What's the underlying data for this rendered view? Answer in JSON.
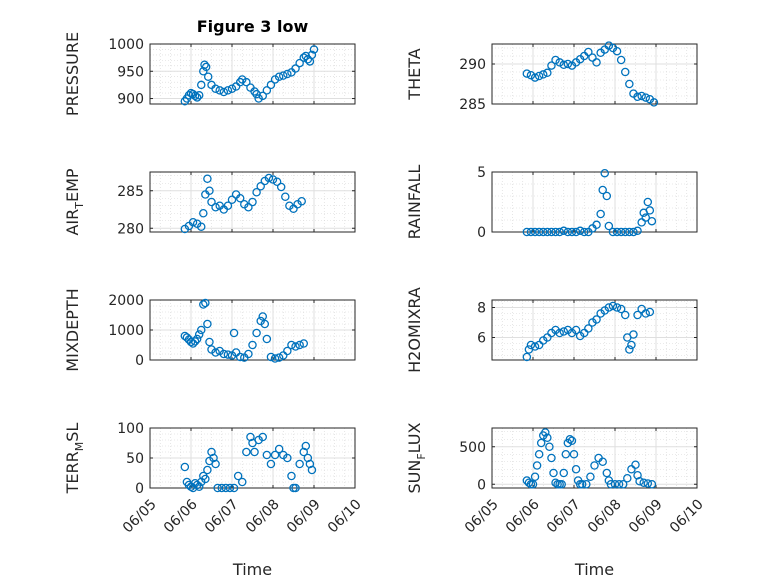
{
  "colors": {
    "marker": "#0072BD",
    "axis": "#262626",
    "grid": "#DFDFDF",
    "minorgrid": "#EFEFEF"
  },
  "chart_data": [
    {
      "type": "scatter",
      "title": "Figure 3 low",
      "ylabel": "PRESSURE",
      "ylabel_parts": null,
      "xlim": [
        0,
        5
      ],
      "ylim": [
        890,
        1000
      ],
      "yticks": [
        900,
        950,
        1000
      ],
      "grid": true,
      "xticklabels_visible": false,
      "xlabel": "",
      "points": [
        [
          0.85,
          895
        ],
        [
          0.9,
          900
        ],
        [
          0.95,
          906
        ],
        [
          1.0,
          910
        ],
        [
          1.05,
          908
        ],
        [
          1.1,
          905
        ],
        [
          1.15,
          902
        ],
        [
          1.2,
          906
        ],
        [
          1.25,
          925
        ],
        [
          1.3,
          950
        ],
        [
          1.33,
          962
        ],
        [
          1.37,
          958
        ],
        [
          1.42,
          940
        ],
        [
          1.5,
          925
        ],
        [
          1.6,
          918
        ],
        [
          1.7,
          915
        ],
        [
          1.8,
          912
        ],
        [
          1.9,
          915
        ],
        [
          2.0,
          918
        ],
        [
          2.1,
          922
        ],
        [
          2.2,
          930
        ],
        [
          2.25,
          935
        ],
        [
          2.35,
          930
        ],
        [
          2.45,
          920
        ],
        [
          2.55,
          913
        ],
        [
          2.6,
          908
        ],
        [
          2.65,
          900
        ],
        [
          2.75,
          905
        ],
        [
          2.85,
          915
        ],
        [
          2.95,
          925
        ],
        [
          3.05,
          935
        ],
        [
          3.15,
          940
        ],
        [
          3.25,
          942
        ],
        [
          3.35,
          945
        ],
        [
          3.45,
          948
        ],
        [
          3.55,
          955
        ],
        [
          3.65,
          965
        ],
        [
          3.75,
          975
        ],
        [
          3.8,
          978
        ],
        [
          3.85,
          972
        ],
        [
          3.9,
          968
        ],
        [
          3.95,
          980
        ],
        [
          4.0,
          990
        ]
      ]
    },
    {
      "type": "scatter",
      "title": "",
      "ylabel": "THETA",
      "ylabel_parts": null,
      "xlim": [
        0,
        5
      ],
      "ylim": [
        285,
        292.5
      ],
      "yticks": [
        285,
        290
      ],
      "grid": true,
      "xticklabels_visible": false,
      "xlabel": "",
      "points": [
        [
          0.85,
          288.8
        ],
        [
          0.95,
          288.6
        ],
        [
          1.05,
          288.3
        ],
        [
          1.15,
          288.5
        ],
        [
          1.25,
          288.7
        ],
        [
          1.35,
          288.9
        ],
        [
          1.45,
          289.8
        ],
        [
          1.55,
          290.5
        ],
        [
          1.65,
          290.2
        ],
        [
          1.75,
          289.9
        ],
        [
          1.85,
          290.0
        ],
        [
          1.95,
          289.8
        ],
        [
          2.05,
          290.2
        ],
        [
          2.15,
          290.6
        ],
        [
          2.25,
          291.0
        ],
        [
          2.35,
          291.5
        ],
        [
          2.45,
          290.8
        ],
        [
          2.55,
          290.2
        ],
        [
          2.65,
          291.4
        ],
        [
          2.75,
          291.8
        ],
        [
          2.85,
          292.3
        ],
        [
          2.95,
          292.0
        ],
        [
          3.05,
          291.6
        ],
        [
          3.15,
          290.5
        ],
        [
          3.25,
          289.0
        ],
        [
          3.35,
          287.5
        ],
        [
          3.45,
          286.3
        ],
        [
          3.55,
          285.9
        ],
        [
          3.65,
          286.0
        ],
        [
          3.75,
          285.8
        ],
        [
          3.85,
          285.6
        ],
        [
          3.95,
          285.2
        ]
      ]
    },
    {
      "type": "scatter",
      "title": "",
      "ylabel": "AIR_TEMP",
      "ylabel_parts": [
        "AIR",
        "T",
        "EMP"
      ],
      "xlim": [
        0,
        5
      ],
      "ylim": [
        279.5,
        287.5
      ],
      "yticks": [
        280,
        285
      ],
      "grid": true,
      "xticklabels_visible": false,
      "xlabel": "",
      "points": [
        [
          0.85,
          279.9
        ],
        [
          0.95,
          280.3
        ],
        [
          1.05,
          280.8
        ],
        [
          1.15,
          280.6
        ],
        [
          1.25,
          280.2
        ],
        [
          1.3,
          282.0
        ],
        [
          1.35,
          284.5
        ],
        [
          1.4,
          286.6
        ],
        [
          1.45,
          285.0
        ],
        [
          1.5,
          283.5
        ],
        [
          1.6,
          282.8
        ],
        [
          1.7,
          283.0
        ],
        [
          1.8,
          282.5
        ],
        [
          1.9,
          283.0
        ],
        [
          2.0,
          283.8
        ],
        [
          2.1,
          284.5
        ],
        [
          2.2,
          284.0
        ],
        [
          2.3,
          283.2
        ],
        [
          2.4,
          282.8
        ],
        [
          2.5,
          283.5
        ],
        [
          2.6,
          284.8
        ],
        [
          2.7,
          285.6
        ],
        [
          2.8,
          286.3
        ],
        [
          2.9,
          286.7
        ],
        [
          3.0,
          286.5
        ],
        [
          3.1,
          286.2
        ],
        [
          3.2,
          285.5
        ],
        [
          3.3,
          284.2
        ],
        [
          3.4,
          283.0
        ],
        [
          3.5,
          282.6
        ],
        [
          3.6,
          283.2
        ],
        [
          3.7,
          283.6
        ]
      ]
    },
    {
      "type": "scatter",
      "title": "",
      "ylabel": "RAINFALL",
      "ylabel_parts": null,
      "xlim": [
        0,
        5
      ],
      "ylim": [
        0,
        5
      ],
      "yticks": [
        0,
        5
      ],
      "grid": true,
      "xticklabels_visible": false,
      "xlabel": "",
      "points": [
        [
          0.85,
          0
        ],
        [
          0.95,
          0
        ],
        [
          1.05,
          0
        ],
        [
          1.15,
          0
        ],
        [
          1.25,
          0
        ],
        [
          1.35,
          0
        ],
        [
          1.45,
          0
        ],
        [
          1.55,
          0
        ],
        [
          1.65,
          0
        ],
        [
          1.75,
          0.1
        ],
        [
          1.85,
          0
        ],
        [
          1.95,
          0
        ],
        [
          2.05,
          0
        ],
        [
          2.15,
          0.1
        ],
        [
          2.25,
          0
        ],
        [
          2.35,
          0
        ],
        [
          2.45,
          0.3
        ],
        [
          2.55,
          0.6
        ],
        [
          2.65,
          1.5
        ],
        [
          2.7,
          3.5
        ],
        [
          2.75,
          4.9
        ],
        [
          2.8,
          3.0
        ],
        [
          2.85,
          0.5
        ],
        [
          2.95,
          0
        ],
        [
          3.05,
          0
        ],
        [
          3.15,
          0
        ],
        [
          3.25,
          0
        ],
        [
          3.35,
          0
        ],
        [
          3.45,
          0
        ],
        [
          3.55,
          0.1
        ],
        [
          3.65,
          0.8
        ],
        [
          3.7,
          1.6
        ],
        [
          3.75,
          1.2
        ],
        [
          3.8,
          2.5
        ],
        [
          3.85,
          1.8
        ],
        [
          3.9,
          0.9
        ]
      ]
    },
    {
      "type": "scatter",
      "title": "",
      "ylabel": "MIXDEPTH",
      "ylabel_parts": null,
      "xlim": [
        0,
        5
      ],
      "ylim": [
        0,
        2000
      ],
      "yticks": [
        0,
        1000,
        2000
      ],
      "grid": true,
      "xticklabels_visible": false,
      "xlabel": "",
      "points": [
        [
          0.85,
          800
        ],
        [
          0.9,
          750
        ],
        [
          0.95,
          680
        ],
        [
          1.0,
          600
        ],
        [
          1.05,
          550
        ],
        [
          1.1,
          620
        ],
        [
          1.15,
          700
        ],
        [
          1.2,
          850
        ],
        [
          1.25,
          1000
        ],
        [
          1.3,
          1850
        ],
        [
          1.35,
          1900
        ],
        [
          1.4,
          1200
        ],
        [
          1.45,
          600
        ],
        [
          1.5,
          350
        ],
        [
          1.6,
          250
        ],
        [
          1.7,
          300
        ],
        [
          1.8,
          200
        ],
        [
          1.9,
          180
        ],
        [
          2.0,
          150
        ],
        [
          2.05,
          900
        ],
        [
          2.1,
          250
        ],
        [
          2.2,
          100
        ],
        [
          2.3,
          80
        ],
        [
          2.4,
          200
        ],
        [
          2.5,
          500
        ],
        [
          2.6,
          900
        ],
        [
          2.7,
          1300
        ],
        [
          2.75,
          1450
        ],
        [
          2.8,
          1200
        ],
        [
          2.85,
          700
        ],
        [
          2.95,
          100
        ],
        [
          3.05,
          50
        ],
        [
          3.15,
          80
        ],
        [
          3.25,
          150
        ],
        [
          3.35,
          300
        ],
        [
          3.45,
          500
        ],
        [
          3.55,
          450
        ],
        [
          3.65,
          500
        ],
        [
          3.75,
          550
        ]
      ]
    },
    {
      "type": "scatter",
      "title": "",
      "ylabel": "H2OMIXRA",
      "ylabel_parts": null,
      "xlim": [
        0,
        5
      ],
      "ylim": [
        4.5,
        8.5
      ],
      "yticks": [
        6,
        8
      ],
      "grid": true,
      "xticklabels_visible": false,
      "xlabel": "",
      "points": [
        [
          0.85,
          4.7
        ],
        [
          0.9,
          5.2
        ],
        [
          0.95,
          5.5
        ],
        [
          1.05,
          5.4
        ],
        [
          1.15,
          5.5
        ],
        [
          1.25,
          5.8
        ],
        [
          1.35,
          6.0
        ],
        [
          1.45,
          6.3
        ],
        [
          1.55,
          6.5
        ],
        [
          1.65,
          6.3
        ],
        [
          1.75,
          6.4
        ],
        [
          1.85,
          6.5
        ],
        [
          1.95,
          6.3
        ],
        [
          2.05,
          6.5
        ],
        [
          2.15,
          6.1
        ],
        [
          2.25,
          6.3
        ],
        [
          2.35,
          6.6
        ],
        [
          2.45,
          7.0
        ],
        [
          2.55,
          7.2
        ],
        [
          2.65,
          7.6
        ],
        [
          2.75,
          7.8
        ],
        [
          2.85,
          8.0
        ],
        [
          2.95,
          8.1
        ],
        [
          3.05,
          8.0
        ],
        [
          3.15,
          7.9
        ],
        [
          3.25,
          7.5
        ],
        [
          3.3,
          6.0
        ],
        [
          3.35,
          5.2
        ],
        [
          3.4,
          5.5
        ],
        [
          3.45,
          6.2
        ],
        [
          3.55,
          7.5
        ],
        [
          3.65,
          7.9
        ],
        [
          3.75,
          7.6
        ],
        [
          3.85,
          7.7
        ]
      ]
    },
    {
      "type": "scatter",
      "title": "",
      "ylabel": "TERR_MSL",
      "ylabel_parts": [
        "TERR",
        "M",
        "SL"
      ],
      "xlim": [
        0,
        5
      ],
      "ylim": [
        0,
        100
      ],
      "yticks": [
        0,
        50,
        100
      ],
      "grid": true,
      "xticklabels_visible": true,
      "xlabel": "Time",
      "points": [
        [
          0.85,
          35
        ],
        [
          0.9,
          10
        ],
        [
          0.95,
          5
        ],
        [
          1.0,
          2
        ],
        [
          1.05,
          0
        ],
        [
          1.1,
          8
        ],
        [
          1.15,
          5
        ],
        [
          1.2,
          2
        ],
        [
          1.25,
          10
        ],
        [
          1.3,
          20
        ],
        [
          1.35,
          15
        ],
        [
          1.4,
          30
        ],
        [
          1.45,
          45
        ],
        [
          1.5,
          60
        ],
        [
          1.55,
          50
        ],
        [
          1.6,
          40
        ],
        [
          1.65,
          0
        ],
        [
          1.75,
          0
        ],
        [
          1.85,
          0
        ],
        [
          1.95,
          0
        ],
        [
          2.05,
          0
        ],
        [
          2.15,
          20
        ],
        [
          2.25,
          10
        ],
        [
          2.35,
          60
        ],
        [
          2.45,
          85
        ],
        [
          2.5,
          75
        ],
        [
          2.55,
          60
        ],
        [
          2.65,
          80
        ],
        [
          2.75,
          85
        ],
        [
          2.85,
          55
        ],
        [
          2.95,
          40
        ],
        [
          3.05,
          55
        ],
        [
          3.15,
          65
        ],
        [
          3.25,
          55
        ],
        [
          3.35,
          50
        ],
        [
          3.45,
          20
        ],
        [
          3.5,
          0
        ],
        [
          3.55,
          0
        ],
        [
          3.65,
          40
        ],
        [
          3.75,
          60
        ],
        [
          3.8,
          70
        ],
        [
          3.85,
          50
        ],
        [
          3.9,
          40
        ],
        [
          3.95,
          30
        ]
      ]
    },
    {
      "type": "scatter",
      "title": "",
      "ylabel": "SUN_FLUX",
      "ylabel_parts": [
        "SUN",
        "F",
        "LUX"
      ],
      "xlim": [
        0,
        5
      ],
      "ylim": [
        -50,
        750
      ],
      "yticks": [
        0,
        500
      ],
      "grid": true,
      "xticklabels_visible": true,
      "xlabel": "Time",
      "points": [
        [
          0.85,
          50
        ],
        [
          0.9,
          20
        ],
        [
          0.95,
          0
        ],
        [
          1.0,
          0
        ],
        [
          1.05,
          100
        ],
        [
          1.1,
          250
        ],
        [
          1.15,
          400
        ],
        [
          1.2,
          550
        ],
        [
          1.25,
          650
        ],
        [
          1.3,
          690
        ],
        [
          1.35,
          620
        ],
        [
          1.4,
          500
        ],
        [
          1.45,
          350
        ],
        [
          1.5,
          150
        ],
        [
          1.55,
          20
        ],
        [
          1.6,
          0
        ],
        [
          1.65,
          0
        ],
        [
          1.7,
          0
        ],
        [
          1.75,
          150
        ],
        [
          1.8,
          400
        ],
        [
          1.85,
          550
        ],
        [
          1.9,
          600
        ],
        [
          1.95,
          580
        ],
        [
          2.0,
          400
        ],
        [
          2.05,
          200
        ],
        [
          2.1,
          50
        ],
        [
          2.15,
          0
        ],
        [
          2.2,
          0
        ],
        [
          2.3,
          0
        ],
        [
          2.4,
          100
        ],
        [
          2.5,
          250
        ],
        [
          2.6,
          350
        ],
        [
          2.7,
          300
        ],
        [
          2.8,
          150
        ],
        [
          2.85,
          50
        ],
        [
          2.9,
          0
        ],
        [
          3.0,
          0
        ],
        [
          3.1,
          0
        ],
        [
          3.2,
          0
        ],
        [
          3.3,
          80
        ],
        [
          3.4,
          200
        ],
        [
          3.5,
          260
        ],
        [
          3.55,
          120
        ],
        [
          3.6,
          40
        ],
        [
          3.7,
          20
        ],
        [
          3.8,
          10
        ],
        [
          3.9,
          0
        ]
      ]
    }
  ],
  "xticklabels": [
    "06/05",
    "06/06",
    "06/07",
    "06/08",
    "06/09",
    "06/10"
  ]
}
